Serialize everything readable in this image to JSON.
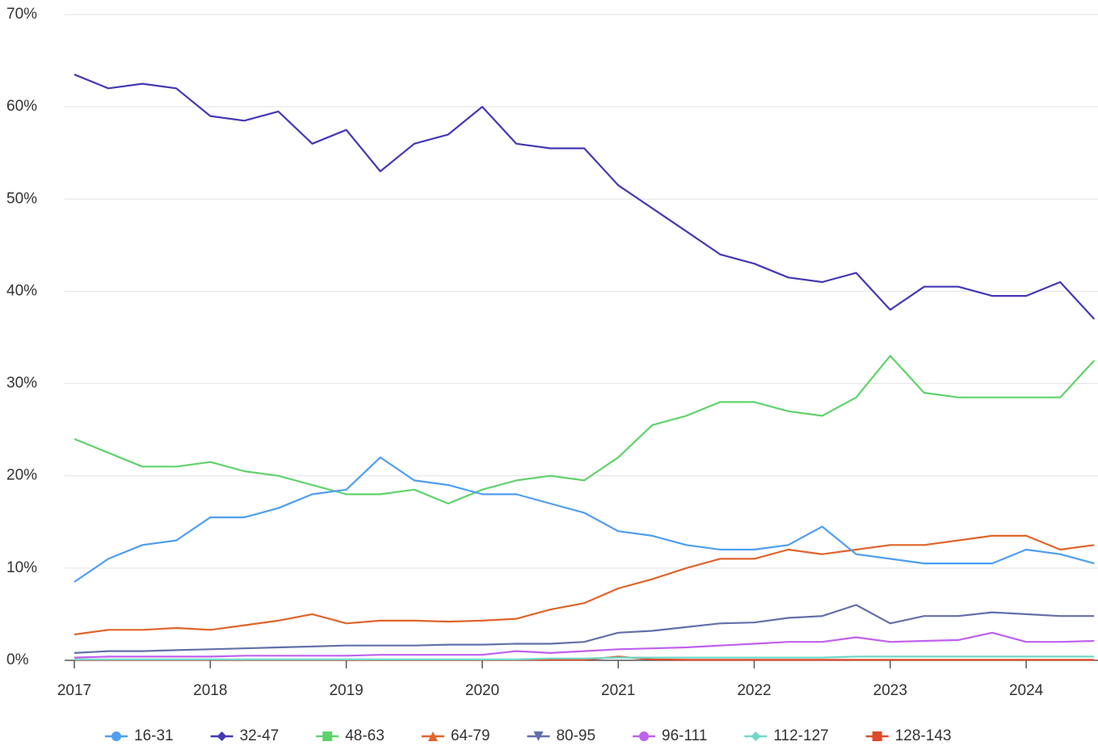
{
  "chart_data": {
    "type": "line",
    "x": [
      2017,
      2017.25,
      2017.5,
      2017.75,
      2018,
      2018.25,
      2018.5,
      2018.75,
      2019,
      2019.25,
      2019.5,
      2019.75,
      2020,
      2020.25,
      2020.5,
      2020.75,
      2021,
      2021.25,
      2021.5,
      2021.75,
      2022,
      2022.25,
      2022.5,
      2022.75,
      2023,
      2023.25,
      2023.5,
      2023.75,
      2024,
      2024.25,
      2024.5
    ],
    "xlim": [
      2017,
      2024.5
    ],
    "xticks": [
      2017,
      2018,
      2019,
      2020,
      2021,
      2022,
      2023,
      2024
    ],
    "ylim": [
      0,
      70
    ],
    "yticks": [
      {
        "value": 0,
        "label": "0%"
      },
      {
        "value": 10,
        "label": "10%"
      },
      {
        "value": 20,
        "label": "20%"
      },
      {
        "value": 30,
        "label": "30%"
      },
      {
        "value": 40,
        "label": "40%"
      },
      {
        "value": 50,
        "label": "50%"
      },
      {
        "value": 60,
        "label": "60%"
      },
      {
        "value": 70,
        "label": "70%"
      }
    ],
    "grid": true,
    "legend": "bottom",
    "series": [
      {
        "name": "16-31",
        "color": "#4e9ef0",
        "marker": "circle",
        "values": [
          8.5,
          11,
          12.5,
          13,
          15.5,
          15.5,
          16.5,
          18,
          18.5,
          22,
          19.5,
          19,
          18,
          18,
          17,
          16,
          14,
          13.5,
          12.5,
          12,
          12,
          12.5,
          14.5,
          11.5,
          11,
          10.5,
          10.5,
          10.5,
          12,
          11.5,
          10.5
        ]
      },
      {
        "name": "32-47",
        "color": "#4338b5",
        "marker": "diamond",
        "values": [
          63.5,
          62,
          62.5,
          62,
          59,
          58.5,
          59.5,
          56,
          57.5,
          53,
          56,
          57,
          60,
          56,
          55.5,
          55.5,
          51.5,
          49,
          46.5,
          44,
          43,
          41.5,
          41,
          42,
          38,
          40.5,
          40.5,
          39.5,
          39.5,
          41,
          37
        ]
      },
      {
        "name": "48-63",
        "color": "#5fd36b",
        "marker": "square",
        "values": [
          24,
          22.5,
          21,
          21,
          21.5,
          20.5,
          20,
          19,
          18,
          18,
          18.5,
          17,
          18.5,
          19.5,
          20,
          19.5,
          22,
          25.5,
          26.5,
          28,
          28,
          27,
          26.5,
          28.5,
          33,
          29,
          28.5,
          28.5,
          28.5,
          28.5,
          32.5
        ]
      },
      {
        "name": "64-79",
        "color": "#e0642a",
        "marker": "triangle-up",
        "values": [
          2.8,
          3.3,
          3.3,
          3.5,
          3.3,
          3.8,
          4.3,
          5,
          4,
          4.3,
          4.3,
          4.2,
          4.3,
          4.5,
          5.5,
          6.2,
          7.8,
          8.8,
          10,
          11,
          11,
          12,
          11.5,
          12,
          12.5,
          12.5,
          13,
          13.5,
          13.5,
          12,
          12.5
        ]
      },
      {
        "name": "80-95",
        "color": "#6270a8",
        "marker": "triangle-down",
        "values": [
          0.8,
          1,
          1,
          1.1,
          1.2,
          1.3,
          1.4,
          1.5,
          1.6,
          1.6,
          1.6,
          1.7,
          1.7,
          1.8,
          1.8,
          2,
          3,
          3.2,
          3.6,
          4,
          4.1,
          4.6,
          4.8,
          6,
          4,
          4.8,
          4.8,
          5.2,
          5,
          4.8,
          4.8
        ]
      },
      {
        "name": "96-111",
        "color": "#c060ee",
        "marker": "circle",
        "values": [
          0.3,
          0.4,
          0.4,
          0.4,
          0.4,
          0.5,
          0.5,
          0.5,
          0.5,
          0.6,
          0.6,
          0.6,
          0.6,
          1,
          0.8,
          1,
          1.2,
          1.3,
          1.4,
          1.6,
          1.8,
          2,
          2,
          2.5,
          2,
          2.1,
          2.2,
          3,
          2,
          2,
          2.1
        ]
      },
      {
        "name": "112-127",
        "color": "#6fd8c8",
        "marker": "diamond",
        "values": [
          0.1,
          0.1,
          0.1,
          0.1,
          0.1,
          0.1,
          0.1,
          0.1,
          0.1,
          0.1,
          0.1,
          0.1,
          0.1,
          0.1,
          0.2,
          0.2,
          0.3,
          0.3,
          0.3,
          0.3,
          0.3,
          0.3,
          0.3,
          0.4,
          0.4,
          0.4,
          0.4,
          0.4,
          0.4,
          0.4,
          0.4
        ]
      },
      {
        "name": "128-143",
        "color": "#e04a2a",
        "marker": "square",
        "values": [
          0.05,
          0.05,
          0.05,
          0.05,
          0.05,
          0.05,
          0.05,
          0.05,
          0.05,
          0.05,
          0.05,
          0.05,
          0.05,
          0.05,
          0.05,
          0.05,
          0.4,
          0.1,
          0.05,
          0.05,
          0.05,
          0.05,
          0.05,
          0.05,
          0.05,
          0.05,
          0.05,
          0.05,
          0.05,
          0.05,
          0.05
        ]
      }
    ]
  }
}
